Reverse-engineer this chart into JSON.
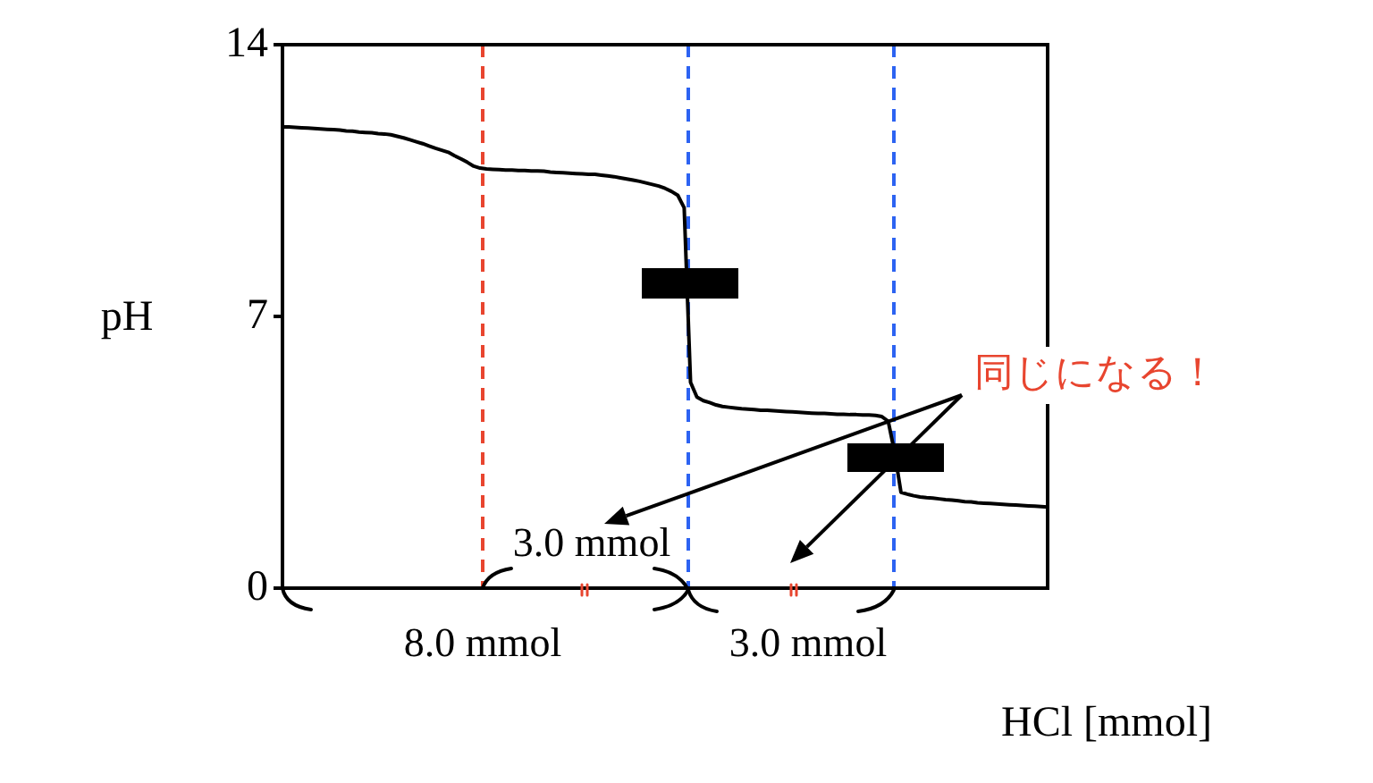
{
  "chart_data": {
    "type": "line",
    "xlabel": "HCl [mmol]",
    "ylabel": "pH",
    "annotations": [
      "同じになる！",
      "3.0 mmol",
      "8.0 mmol",
      "3.0 mmol"
    ],
    "categories": [
      null,
      null,
      null,
      null,
      null,
      null,
      null,
      null,
      null,
      null,
      null,
      null,
      null,
      null,
      null,
      null,
      null,
      null,
      null,
      null,
      null,
      null,
      null,
      null,
      null,
      null,
      null,
      null,
      null,
      null,
      null,
      null,
      null,
      null,
      null,
      null,
      null,
      null,
      null,
      null,
      null,
      null,
      null,
      null,
      null,
      null,
      null,
      null,
      null,
      null,
      null,
      null,
      null,
      null,
      null,
      null,
      null,
      null,
      null,
      null,
      null,
      null,
      null,
      null,
      null,
      null,
      null,
      null,
      null,
      null,
      null,
      null,
      null,
      null,
      null,
      null,
      null,
      null,
      null,
      null,
      null,
      null,
      null,
      null,
      null,
      null,
      null,
      null,
      null,
      null,
      null,
      null,
      null,
      null,
      null,
      null,
      null,
      null,
      null,
      null,
      null,
      null,
      null,
      null,
      null,
      null,
      null,
      null,
      null,
      null,
      null,
      null,
      null,
      null,
      null,
      null,
      null,
      null,
      null,
      null,
      null
    ],
    "series": [
      {
        "color": "#000000",
        "values": [
          11.88,
          11.88,
          11.87,
          11.86,
          11.85,
          11.84,
          11.83,
          11.82,
          11.81,
          11.8,
          11.78,
          11.77,
          11.75,
          11.74,
          11.73,
          11.71,
          11.7,
          11.68,
          11.64,
          11.6,
          11.55,
          11.5,
          11.45,
          11.39,
          11.33,
          11.28,
          11.23,
          11.14,
          11.06,
          10.97,
          10.87,
          10.82,
          10.8,
          10.79,
          10.78,
          10.77,
          10.77,
          10.76,
          10.76,
          10.75,
          10.75,
          10.74,
          10.72,
          10.71,
          10.7,
          10.69,
          10.68,
          10.67,
          10.66,
          10.66,
          10.64,
          10.62,
          10.6,
          10.57,
          10.54,
          10.51,
          10.48,
          10.44,
          10.4,
          10.36,
          10.3,
          10.22,
          10.12,
          9.8,
          5.3,
          4.92,
          4.83,
          4.78,
          4.72,
          4.68,
          4.66,
          4.64,
          4.62,
          4.61,
          4.6,
          4.58,
          4.58,
          4.57,
          4.56,
          4.55,
          4.54,
          4.53,
          4.52,
          4.51,
          4.5,
          4.5,
          4.49,
          4.48,
          4.48,
          4.47,
          4.47,
          4.46,
          4.46,
          4.45,
          4.42,
          4.3,
          3.5,
          2.47,
          2.42,
          2.38,
          2.35,
          2.33,
          2.32,
          2.3,
          2.28,
          2.27,
          2.25,
          2.23,
          2.22,
          2.2,
          2.19,
          2.18,
          2.17,
          2.16,
          2.15,
          2.14,
          2.13,
          2.12,
          2.11,
          2.1,
          2.09
        ]
      }
    ],
    "ylim": [
      0,
      14
    ],
    "yticks": [
      0,
      7,
      14
    ],
    "tick_labels": "y"
  }
}
